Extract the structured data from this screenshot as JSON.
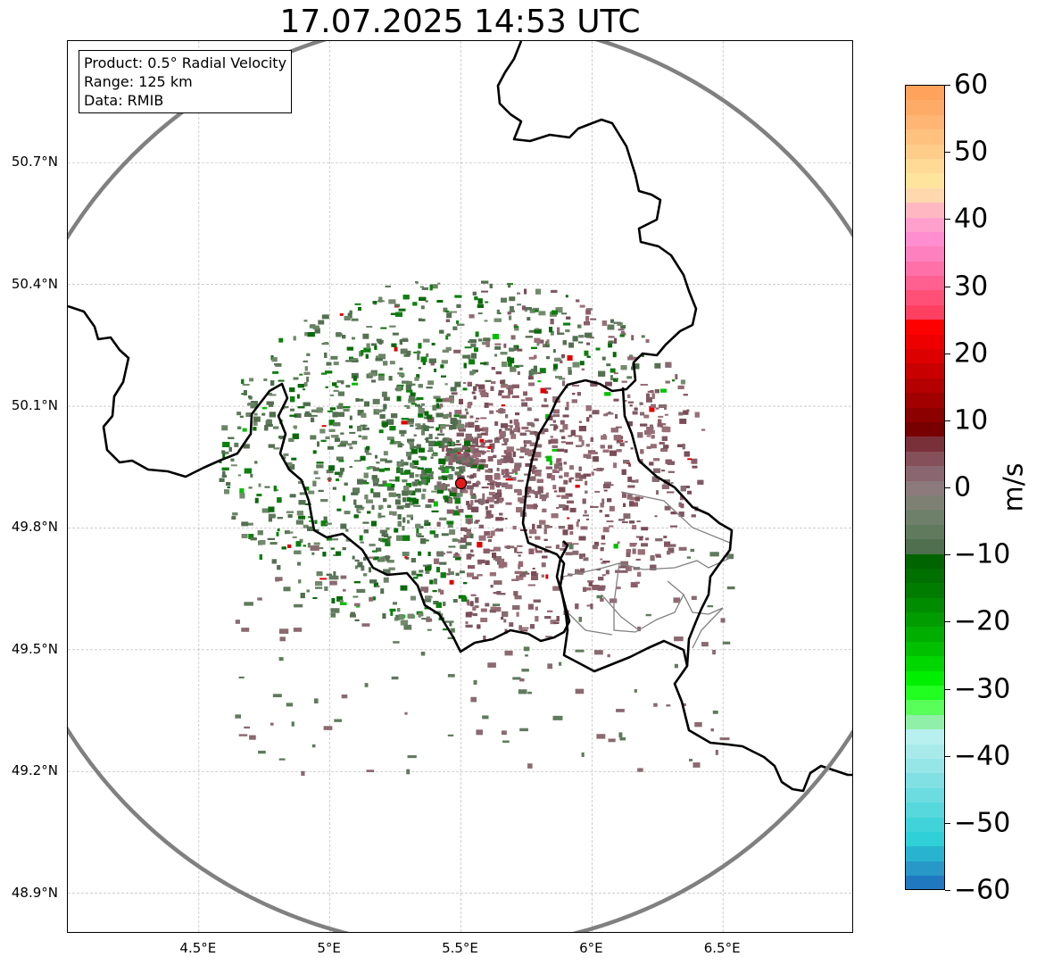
{
  "title": "17.07.2025 14:53 UTC",
  "info_box": {
    "product": "Product: 0.5° Radial Velocity",
    "range": "Range: 125 km",
    "data": "Data: RMIB"
  },
  "axes": {
    "lat_labels": [
      "50.7°N",
      "50.4°N",
      "50.1°N",
      "49.8°N",
      "49.5°N",
      "49.2°N",
      "48.9°N"
    ],
    "lon_labels": [
      "4.5°E",
      "5°E",
      "5.5°E",
      "6°E",
      "6.5°E"
    ],
    "lat_values": [
      50.7,
      50.4,
      50.1,
      49.8,
      49.5,
      49.2,
      48.9
    ],
    "lon_values": [
      4.5,
      5.0,
      5.5,
      6.0,
      6.5
    ],
    "lon_range": [
      4.0,
      7.0
    ],
    "lat_range": [
      48.8,
      51.0
    ],
    "grid": true
  },
  "radar": {
    "site_lon": 5.5,
    "site_lat": 49.91,
    "range_km": 125,
    "site_marker_color": "#e31a1c",
    "range_ring_color": "#808080"
  },
  "colorbar": {
    "unit": "m/s",
    "min": -60,
    "max": 60,
    "tick_values": [
      60,
      50,
      40,
      30,
      20,
      10,
      0,
      -10,
      -20,
      -30,
      -40,
      -50,
      -60
    ],
    "tick_labels": [
      "60",
      "50",
      "40",
      "30",
      "20",
      "10",
      "0",
      "−10",
      "−20",
      "−30",
      "−40",
      "−50",
      "−60"
    ],
    "colors_top_to_bottom": [
      "#ffa35c",
      "#ffab68",
      "#ffb574",
      "#ffc17e",
      "#ffcc8a",
      "#ffd996",
      "#ffe49e",
      "#ffd8ad",
      "#ffb8c2",
      "#ffa0cc",
      "#ff8dcf",
      "#ff80bf",
      "#ff70a8",
      "#ff6090",
      "#ff5078",
      "#ff4060",
      "#ff0000",
      "#ee0000",
      "#dd0000",
      "#c80000",
      "#b40000",
      "#a00000",
      "#8c0000",
      "#780000",
      "#7a3038",
      "#86505a",
      "#8a6670",
      "#8c7a7c",
      "#7f8074",
      "#6e806a",
      "#5f7a5c",
      "#4f6f4e",
      "#006400",
      "#007000",
      "#007c00",
      "#008c00",
      "#009c00",
      "#00ae00",
      "#00c000",
      "#00d600",
      "#00ee00",
      "#20ff20",
      "#58ff58",
      "#90f0a8",
      "#b8f0f0",
      "#a8eaea",
      "#96e6e8",
      "#80e0e4",
      "#6cdce0",
      "#56d8dc",
      "#40d4da",
      "#30d0d8",
      "#28b4d0",
      "#2898c8",
      "#2078c0"
    ]
  },
  "colors": {
    "positive_velocity": "#8a5c68",
    "negative_velocity": "#5f7a5c",
    "border": "#000000",
    "region_border": "#808080"
  }
}
